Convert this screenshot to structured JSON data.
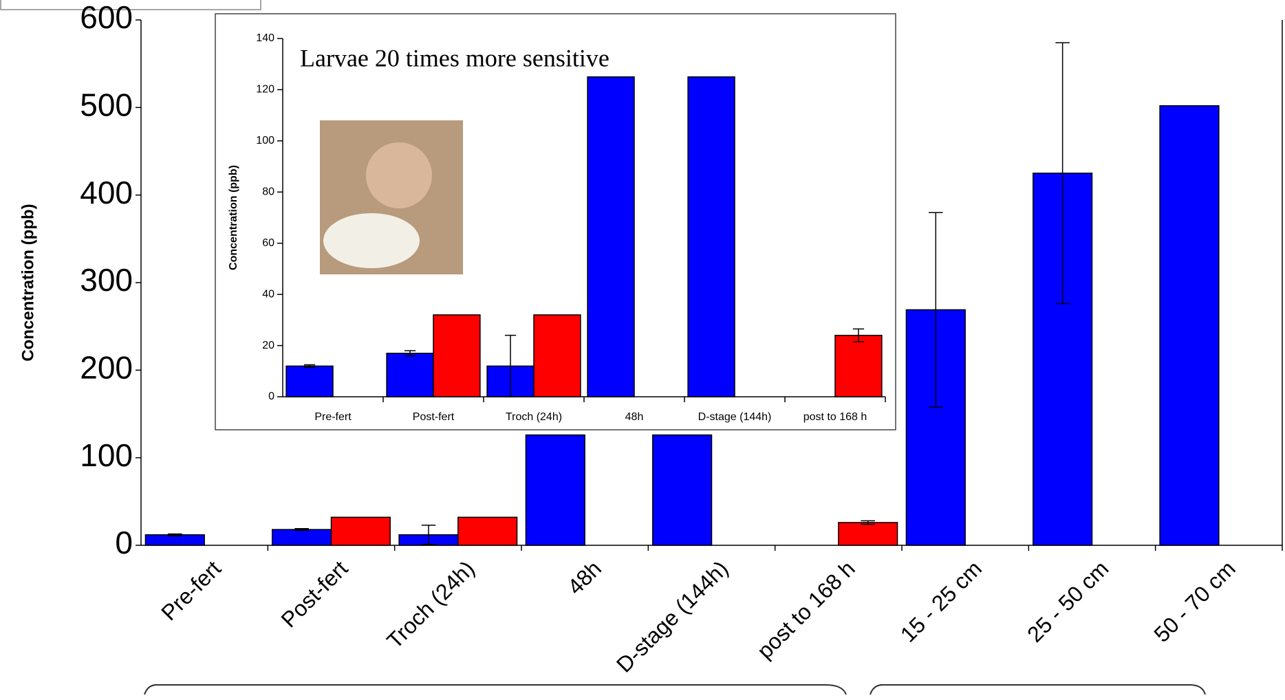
{
  "chart_data": [
    {
      "type": "bar",
      "y_label": "Concentration (ppb)",
      "categories": [
        "Pre-fert",
        "Post-fert",
        "Troch (24h)",
        "48h",
        "D-stage (144h)",
        "post to 168 h",
        "15 - 25 cm",
        "25 - 50 cm",
        "50 - 70 cm"
      ],
      "series": [
        {
          "color": "#0000ff",
          "values": [
            12,
            18,
            12,
            126,
            126,
            null,
            269,
            425,
            502
          ],
          "errors": [
            1,
            1,
            11,
            null,
            null,
            null,
            111,
            149,
            null
          ]
        },
        {
          "color": "#ff0000",
          "values": [
            null,
            32,
            32,
            null,
            null,
            26,
            null,
            null,
            null
          ],
          "errors": [
            null,
            null,
            null,
            null,
            null,
            2,
            null,
            null,
            null
          ]
        }
      ],
      "ylim": [
        0,
        600
      ],
      "yticks": [
        0,
        100,
        200,
        300,
        400,
        500,
        600
      ]
    },
    {
      "type": "bar",
      "y_label": "Concentration (ppb)",
      "annotation": "Larvae 20 times more sensitive",
      "categories": [
        "Pre-fert",
        "Post-fert",
        "Troch (24h)",
        "48h",
        "D-stage (144h)",
        "post to 168 h"
      ],
      "series": [
        {
          "color": "#0000ff",
          "values": [
            12,
            17,
            12,
            125,
            125,
            null
          ],
          "errors": [
            0.5,
            1,
            12,
            null,
            null,
            null
          ]
        },
        {
          "color": "#ff0000",
          "values": [
            null,
            32,
            32,
            null,
            null,
            24
          ],
          "errors": [
            null,
            null,
            null,
            null,
            null,
            2.5
          ]
        }
      ],
      "ylim": [
        0,
        140
      ],
      "yticks": [
        0,
        20,
        40,
        60,
        80,
        100,
        120,
        140
      ]
    }
  ]
}
